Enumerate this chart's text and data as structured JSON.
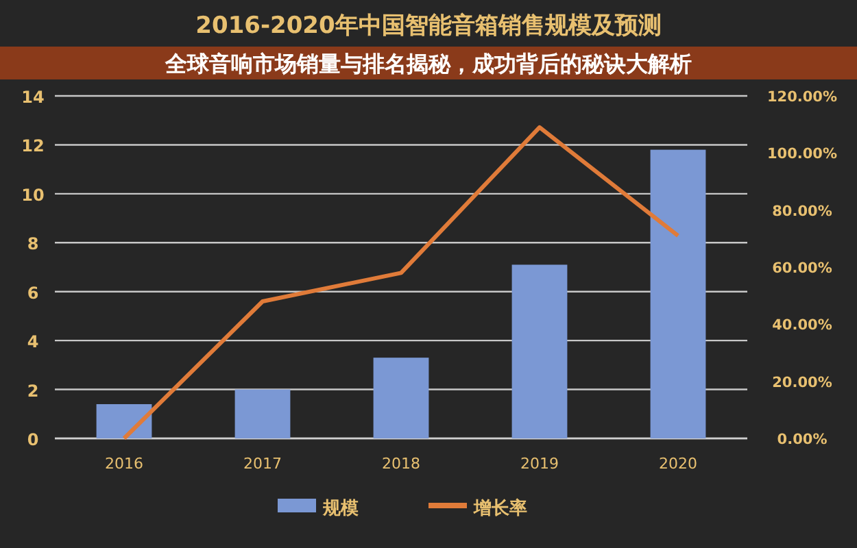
{
  "chart_data": {
    "type": "bar",
    "title": "2016-2020年中国智能音箱销售规模及预测",
    "annotations": [
      "全球音响市场销量与排名揭秘，成功背后的秘诀大解析"
    ],
    "categories": [
      "2016",
      "2017",
      "2018",
      "2019",
      "2020"
    ],
    "series": [
      {
        "name": "规模",
        "color": "#7b98d4",
        "values": [
          1.4,
          2.0,
          3.3,
          7.1,
          11.8
        ]
      },
      {
        "name": "增长率",
        "type": "line",
        "axis": "y2",
        "color": "#e07b39",
        "values": [
          0,
          48,
          58,
          109,
          71
        ]
      }
    ],
    "ylim": [
      0,
      14
    ],
    "yticks": [
      0,
      2,
      4,
      6,
      8,
      10,
      12,
      14
    ],
    "y2lim": [
      0,
      120
    ],
    "y2ticks": [
      {
        "value": 0,
        "label": "0.00%"
      },
      {
        "value": 20,
        "label": "20.00%"
      },
      {
        "value": 40,
        "label": "40.00%"
      },
      {
        "value": 60,
        "label": "60.00%"
      },
      {
        "value": 80,
        "label": "80.00%"
      },
      {
        "value": 100,
        "label": "100.00%"
      },
      {
        "value": 120,
        "label": "120.00%"
      }
    ],
    "grid": "y",
    "legend": "bottom",
    "marker": "none"
  }
}
